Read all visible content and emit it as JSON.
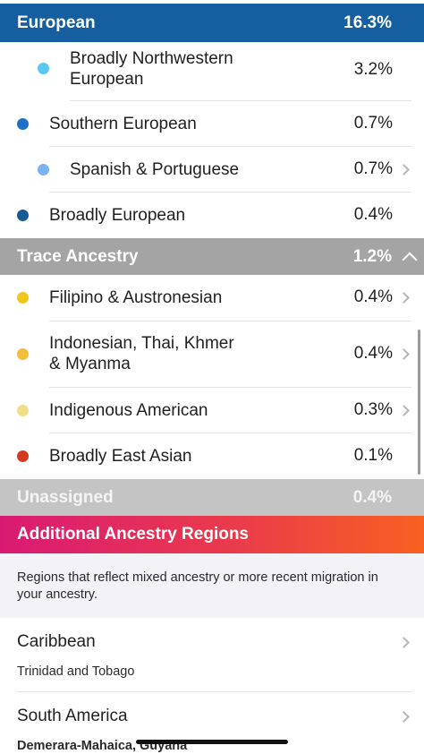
{
  "european": {
    "label": "European",
    "percent": "16.3%"
  },
  "european_rows": [
    {
      "label_line1": "Broadly Northwestern",
      "label_line2": "European",
      "value": "3.2%",
      "color": "#5bc8ef"
    },
    {
      "label": "Southern European",
      "value": "0.7%",
      "color": "#1f6fc7"
    },
    {
      "label": "Spanish & Portuguese",
      "value": "0.7%",
      "color": "#7ab3f0"
    },
    {
      "label": "Broadly European",
      "value": "0.4%",
      "color": "#155a93"
    }
  ],
  "trace": {
    "label": "Trace Ancestry",
    "percent": "1.2%"
  },
  "trace_rows": [
    {
      "label": "Filipino & Austronesian",
      "value": "0.4%",
      "color": "#f2c619"
    },
    {
      "label_line1": "Indonesian, Thai, Khmer",
      "label_line2": "& Myanma",
      "value": "0.4%",
      "color": "#f4be3a"
    },
    {
      "label": "Indigenous American",
      "value": "0.3%",
      "color": "#f1dd85"
    },
    {
      "label": "Broadly East Asian",
      "value": "0.1%",
      "color": "#d43a1f"
    }
  ],
  "unassigned": {
    "label": "Unassigned",
    "percent": "0.4%"
  },
  "additional": {
    "title": "Additional Ancestry Regions",
    "description": "Regions that reflect mixed ancestry or more recent migration in your ancestry."
  },
  "regions": [
    {
      "title": "Caribbean",
      "subtitle": "Trinidad and Tobago"
    },
    {
      "title": "South America",
      "subtitle": "Demerara-Mahaica, Guyana"
    }
  ]
}
